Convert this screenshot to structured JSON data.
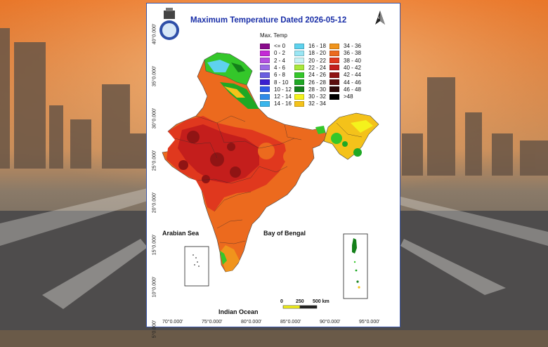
{
  "map": {
    "title": "Maximum Temperature Dated 2026-05-12",
    "legend_title": "Max. Temp",
    "legend": [
      {
        "label": "<= 0",
        "color": "#8a0b8c"
      },
      {
        "label": "0 - 2",
        "color": "#c42ad6"
      },
      {
        "label": "2 - 4",
        "color": "#b44fe0"
      },
      {
        "label": "4 - 6",
        "color": "#9a6ae6"
      },
      {
        "label": "6 - 8",
        "color": "#6a5ee0"
      },
      {
        "label": "8 - 10",
        "color": "#3a1fd0"
      },
      {
        "label": "10 - 12",
        "color": "#2e5ae8"
      },
      {
        "label": "12 - 14",
        "color": "#2e8ae8"
      },
      {
        "label": "14 - 16",
        "color": "#3ab6ec"
      },
      {
        "label": "16 - 18",
        "color": "#5ed2ee"
      },
      {
        "label": "18 - 20",
        "color": "#9ae6f4"
      },
      {
        "label": "20 - 22",
        "color": "#c8f2f4"
      },
      {
        "label": "22 - 24",
        "color": "#a8e83a"
      },
      {
        "label": "24 - 26",
        "color": "#34c72a"
      },
      {
        "label": "26 - 28",
        "color": "#1ea824"
      },
      {
        "label": "28 - 30",
        "color": "#14801a"
      },
      {
        "label": "30 - 32",
        "color": "#f4f21c"
      },
      {
        "label": "32 - 34",
        "color": "#f4c21a"
      },
      {
        "label": "34 - 36",
        "color": "#f0941c"
      },
      {
        "label": "36 - 38",
        "color": "#ec6a1e"
      },
      {
        "label": "38 - 40",
        "color": "#e0381e"
      },
      {
        "label": "40 - 42",
        "color": "#c41e1c"
      },
      {
        "label": "42 - 44",
        "color": "#901414"
      },
      {
        "label": "44 - 46",
        "color": "#5c0e0e"
      },
      {
        "label": "46 - 48",
        "color": "#2e0808"
      },
      {
        "label": ">48",
        "color": "#000000"
      }
    ],
    "lat_labels": [
      "40°0.000'",
      "35°0.000'",
      "30°0.000'",
      "25°0.000'",
      "20°0.000'",
      "15°0.000'",
      "10°0.000'",
      "5°0.000'"
    ],
    "lon_labels": [
      "70°0.000'",
      "75°0.000'",
      "80°0.000'",
      "85°0.000'",
      "90°0.000'",
      "95°0.000'"
    ],
    "seas": {
      "arabian": "Arabian Sea",
      "bengal": "Bay of Bengal",
      "indian": "Indian Ocean"
    },
    "scale": {
      "zero": "0",
      "mid": "250",
      "end": "500 km"
    },
    "north_label": "N"
  }
}
